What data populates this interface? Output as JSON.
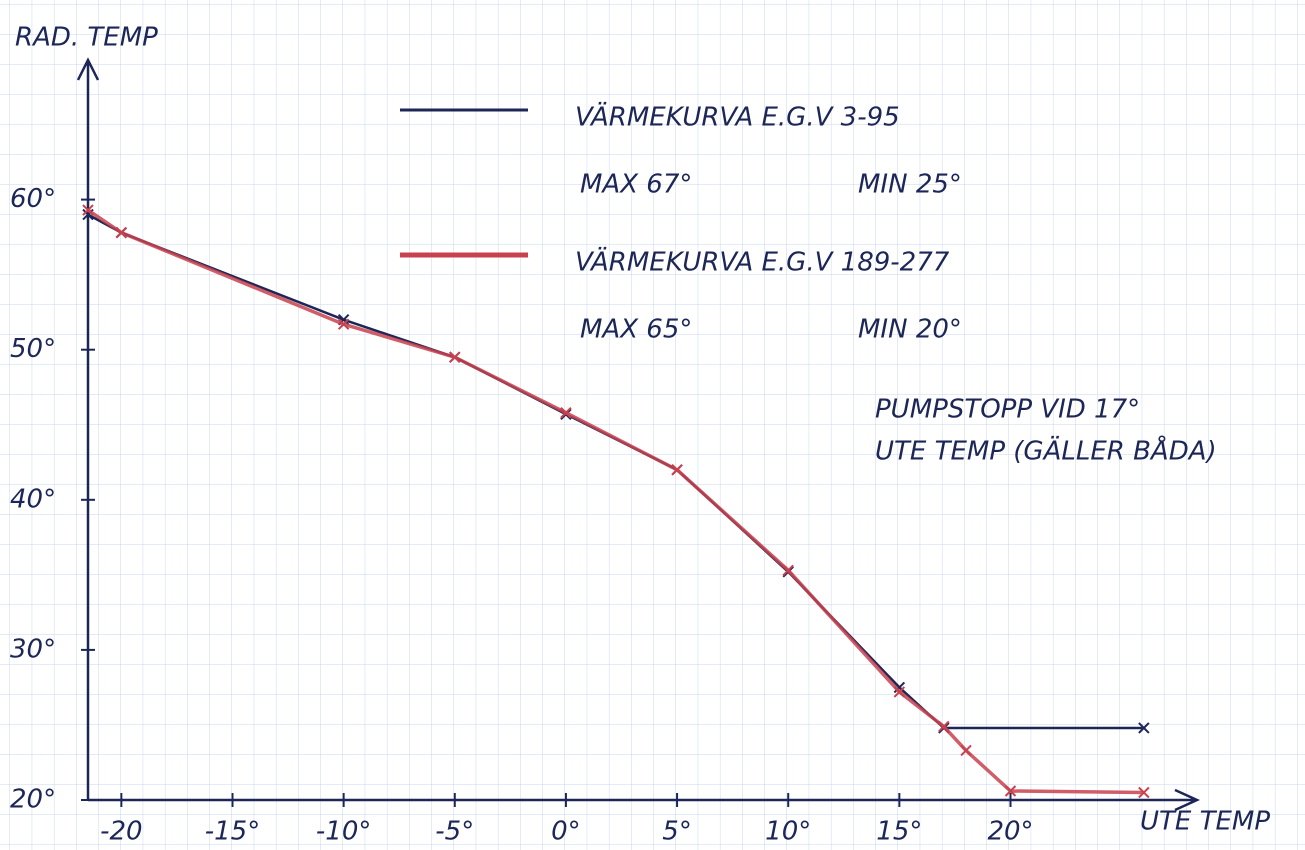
{
  "chart_data": {
    "type": "line",
    "ylabel": "RAD. TEMP",
    "xlabel": "UTE TEMP",
    "xlim": [
      -21.5,
      28.3
    ],
    "ylim": [
      20,
      69.3
    ],
    "xticks": [
      -20,
      {
        "value": -15,
        "label": "-15°"
      },
      {
        "value": -10,
        "label": "-10°"
      },
      {
        "value": -5,
        "label": "-5°"
      },
      {
        "value": 0,
        "label": "0°"
      },
      {
        "value": 5,
        "label": "5°"
      },
      {
        "value": 10,
        "label": "10°"
      },
      {
        "value": 15,
        "label": "15°"
      },
      {
        "value": 20,
        "label": "20°"
      }
    ],
    "yticks": [
      {
        "value": 20,
        "label": "20°"
      },
      {
        "value": 30,
        "label": "30°"
      },
      {
        "value": 40,
        "label": "40°"
      },
      {
        "value": 50,
        "label": "50°"
      },
      {
        "value": 60,
        "label": "60°"
      }
    ],
    "series": [
      {
        "name": "VÄRMEKURVA E.G.V 3-95",
        "color": "#1c2657",
        "notes": [
          "MAX 67°",
          "MIN 25°"
        ],
        "x": [
          -21.5,
          -20,
          -10,
          -5,
          0,
          5,
          10,
          15,
          17,
          26
        ],
        "values": [
          59,
          57.8,
          52,
          49.5,
          45.7,
          42,
          35.2,
          27.5,
          24.8,
          24.8
        ]
      },
      {
        "name": "VÄRMEKURVA E.G.V 189-277",
        "color": "#c8424e",
        "notes": [
          "MAX 65°",
          "MIN 20°"
        ],
        "x": [
          -21.5,
          -20,
          -10,
          -5,
          0,
          5,
          10,
          15,
          17,
          18,
          20,
          26
        ],
        "values": [
          59.3,
          57.8,
          51.7,
          49.5,
          45.8,
          42,
          35.3,
          27.2,
          24.9,
          23.3,
          20.6,
          20.5
        ]
      }
    ],
    "annotation": [
      "PUMPSTOPP VID 17°",
      "UTE TEMP (GÄLLER BÅDA)"
    ]
  }
}
